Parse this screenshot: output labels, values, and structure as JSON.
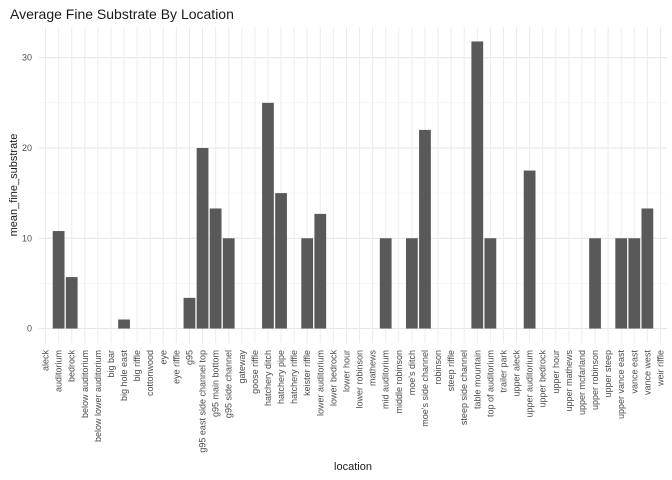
{
  "chart_data": {
    "type": "bar",
    "title": "Average Fine Substrate By Location",
    "xlabel": "location",
    "ylabel": "mean_fine_substrate",
    "ylim": [
      -1.6,
      33.4
    ],
    "yticks": [
      0,
      10,
      20,
      30
    ],
    "grid": true,
    "bar_color": "#595959",
    "categories": [
      "aleck",
      "auditorium",
      "bedrock",
      "below auditorium",
      "below lower auditorium",
      "big bar",
      "big hole east",
      "big riffle",
      "cottonwood",
      "eye",
      "eye riffle",
      "g95",
      "g95 east side channel top",
      "g95 main bottom",
      "g95 side channel",
      "gateway",
      "goose riffle",
      "hatchery ditch",
      "hatchery pipe",
      "hatchery riffle",
      "keister riffle",
      "lower auditorium",
      "lower bedrock",
      "lower hour",
      "lower robinson",
      "mathews",
      "mid auditorium",
      "middle robinson",
      "moe's ditch",
      "moe's side channel",
      "robinson",
      "steep riffle",
      "steep side channel",
      "table mountain",
      "top of auditorium",
      "trailer park",
      "upper aleck",
      "upper auditorium",
      "upper bedrock",
      "upper hour",
      "upper mathews",
      "upper mcfarland",
      "upper robinson",
      "upper steep",
      "upper vance east",
      "vance east",
      "vance west",
      "weir riffle"
    ],
    "values": [
      0,
      10.8,
      5.7,
      0,
      0,
      0,
      1.0,
      0,
      0,
      0,
      0,
      3.4,
      20.0,
      13.3,
      10.0,
      0,
      0,
      25.0,
      15.0,
      0,
      10.0,
      12.7,
      0,
      0,
      0,
      0,
      10.0,
      0,
      10.0,
      22.0,
      0,
      0,
      0,
      31.8,
      10.0,
      0,
      0,
      17.5,
      0,
      0,
      0,
      0,
      10.0,
      0,
      10.0,
      10.0,
      13.3,
      0
    ]
  }
}
